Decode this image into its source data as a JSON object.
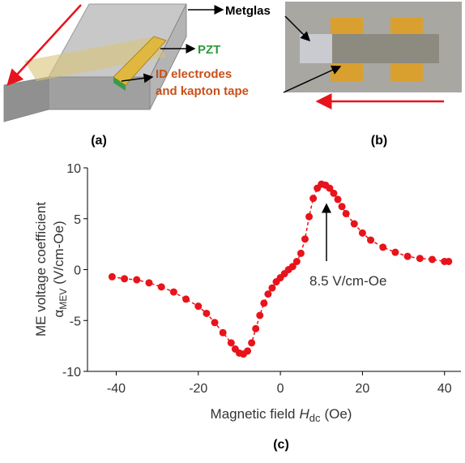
{
  "diagram": {
    "metglas": "Metglas",
    "pzt": "PZT",
    "electrodes_line1": "ID electrodes",
    "electrodes_line2": "and kapton tape"
  },
  "panel_labels": {
    "a": "(a)",
    "b": "(b)",
    "c": "(c)"
  },
  "chart_data": {
    "type": "scatter",
    "x_label": {
      "text": "Magnetic field",
      "symbol": "H",
      "subscript": "dc",
      "unit": "(Oe)"
    },
    "y_label": {
      "line1": "ME voltage coefficient",
      "symbol": "α",
      "subscript": "MEV",
      "unit": "(V/cm-Oe)"
    },
    "annotation": "8.5 V/cm-Oe",
    "color": "#e8131b",
    "xlim": [
      -47,
      44
    ],
    "xticks": [
      -40,
      -20,
      0,
      20,
      40
    ],
    "ylim": [
      -10,
      10
    ],
    "yticks": [
      -10,
      -5,
      0,
      5,
      10
    ],
    "x": [
      -41,
      -38,
      -35,
      -32,
      -29,
      -26,
      -23,
      -20,
      -18,
      -16,
      -14,
      -12,
      -11,
      -10,
      -9,
      -8,
      -7,
      -6,
      -5,
      -4,
      -3,
      -2,
      -1,
      0,
      1,
      2,
      3,
      4,
      5,
      6,
      7,
      8,
      9,
      10,
      11,
      12,
      13,
      14,
      15,
      16,
      18,
      20,
      22,
      25,
      28,
      31,
      34,
      37,
      40,
      41
    ],
    "values": [
      -0.7,
      -0.9,
      -1.0,
      -1.3,
      -1.7,
      -2.2,
      -2.9,
      -3.6,
      -4.3,
      -5.2,
      -6.2,
      -7.2,
      -7.8,
      -8.2,
      -8.3,
      -8.0,
      -7.2,
      -5.8,
      -4.5,
      -3.3,
      -2.4,
      -1.8,
      -1.2,
      -0.8,
      -0.4,
      0,
      0.3,
      0.8,
      1.6,
      3.0,
      5.2,
      7.0,
      8.0,
      8.4,
      8.3,
      8.0,
      7.5,
      6.9,
      6.2,
      5.5,
      4.5,
      3.6,
      2.9,
      2.2,
      1.7,
      1.3,
      1.1,
      1.0,
      0.8,
      0.8
    ]
  }
}
